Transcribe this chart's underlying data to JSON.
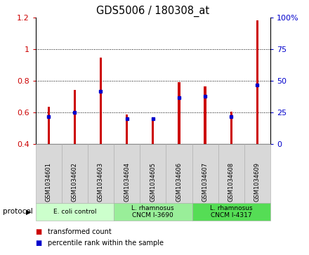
{
  "title": "GDS5006 / 180308_at",
  "samples": [
    "GSM1034601",
    "GSM1034602",
    "GSM1034603",
    "GSM1034604",
    "GSM1034605",
    "GSM1034606",
    "GSM1034607",
    "GSM1034608",
    "GSM1034609"
  ],
  "transformed_count": [
    0.635,
    0.745,
    0.948,
    0.587,
    0.57,
    0.793,
    0.765,
    0.605,
    1.185
  ],
  "percentile_rank": [
    22,
    25,
    42,
    20,
    20,
    37,
    38,
    22,
    47
  ],
  "bar_bottom": 0.4,
  "ylim_left": [
    0.4,
    1.2
  ],
  "ylim_right": [
    0,
    100
  ],
  "yticks_left": [
    0.4,
    0.6,
    0.8,
    1.0,
    1.2
  ],
  "yticks_right": [
    0,
    25,
    50,
    75,
    100
  ],
  "ytick_labels_left": [
    "0.4",
    "0.6",
    "0.8",
    "1",
    "1.2"
  ],
  "ytick_labels_right": [
    "0",
    "25",
    "50",
    "75",
    "100%"
  ],
  "red_color": "#cc0000",
  "blue_color": "#0000cc",
  "protocol_groups": [
    {
      "label": "E. coli control",
      "indices": [
        0,
        1,
        2
      ],
      "color": "#ccffcc"
    },
    {
      "label": "L. rhamnosus\nCNCM I-3690",
      "indices": [
        3,
        4,
        5
      ],
      "color": "#99ee99"
    },
    {
      "label": "L. rhamnosus\nCNCM I-4317",
      "indices": [
        6,
        7,
        8
      ],
      "color": "#55dd55"
    }
  ],
  "bar_bg_color": "#d8d8d8",
  "legend_items": [
    {
      "label": "transformed count",
      "color": "#cc0000"
    },
    {
      "label": "percentile rank within the sample",
      "color": "#0000cc"
    }
  ],
  "xlabel_protocol": "protocol",
  "title_fontsize": 10.5,
  "tick_fontsize": 8,
  "label_fontsize": 8
}
